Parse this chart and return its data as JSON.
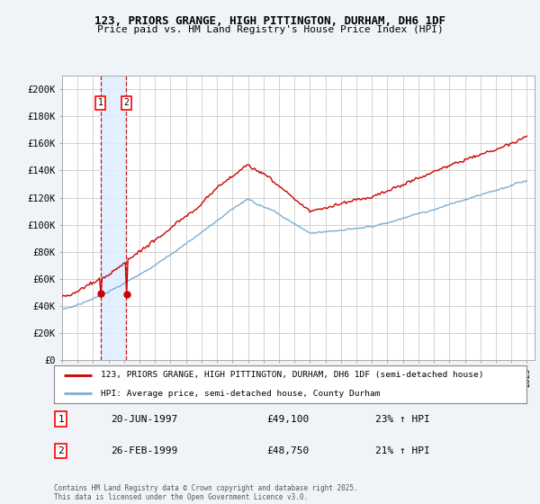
{
  "title_line1": "123, PRIORS GRANGE, HIGH PITTINGTON, DURHAM, DH6 1DF",
  "title_line2": "Price paid vs. HM Land Registry's House Price Index (HPI)",
  "ylim": [
    0,
    210000
  ],
  "yticks": [
    0,
    20000,
    40000,
    60000,
    80000,
    100000,
    120000,
    140000,
    160000,
    180000,
    200000
  ],
  "ytick_labels": [
    "£0",
    "£20K",
    "£40K",
    "£60K",
    "£80K",
    "£100K",
    "£120K",
    "£140K",
    "£160K",
    "£180K",
    "£200K"
  ],
  "xstart_year": 1995,
  "xend_year": 2025,
  "red_line_color": "#cc0000",
  "blue_line_color": "#7aafd4",
  "vline1_date": 1997.47,
  "vline2_date": 1999.15,
  "vspan_color": "#ddeeff",
  "purchase1_date_str": "20-JUN-1997",
  "purchase1_price_str": "£49,100",
  "purchase1_hpi_str": "23% ↑ HPI",
  "purchase2_date_str": "26-FEB-1999",
  "purchase2_price_str": "£48,750",
  "purchase2_hpi_str": "21% ↑ HPI",
  "legend1_label": "123, PRIORS GRANGE, HIGH PITTINGTON, DURHAM, DH6 1DF (semi-detached house)",
  "legend2_label": "HPI: Average price, semi-detached house, County Durham",
  "footer_text": "Contains HM Land Registry data © Crown copyright and database right 2025.\nThis data is licensed under the Open Government Licence v3.0.",
  "bg_color": "#f0f4f8",
  "plot_bg_color": "#ffffff",
  "grid_color": "#cccccc"
}
